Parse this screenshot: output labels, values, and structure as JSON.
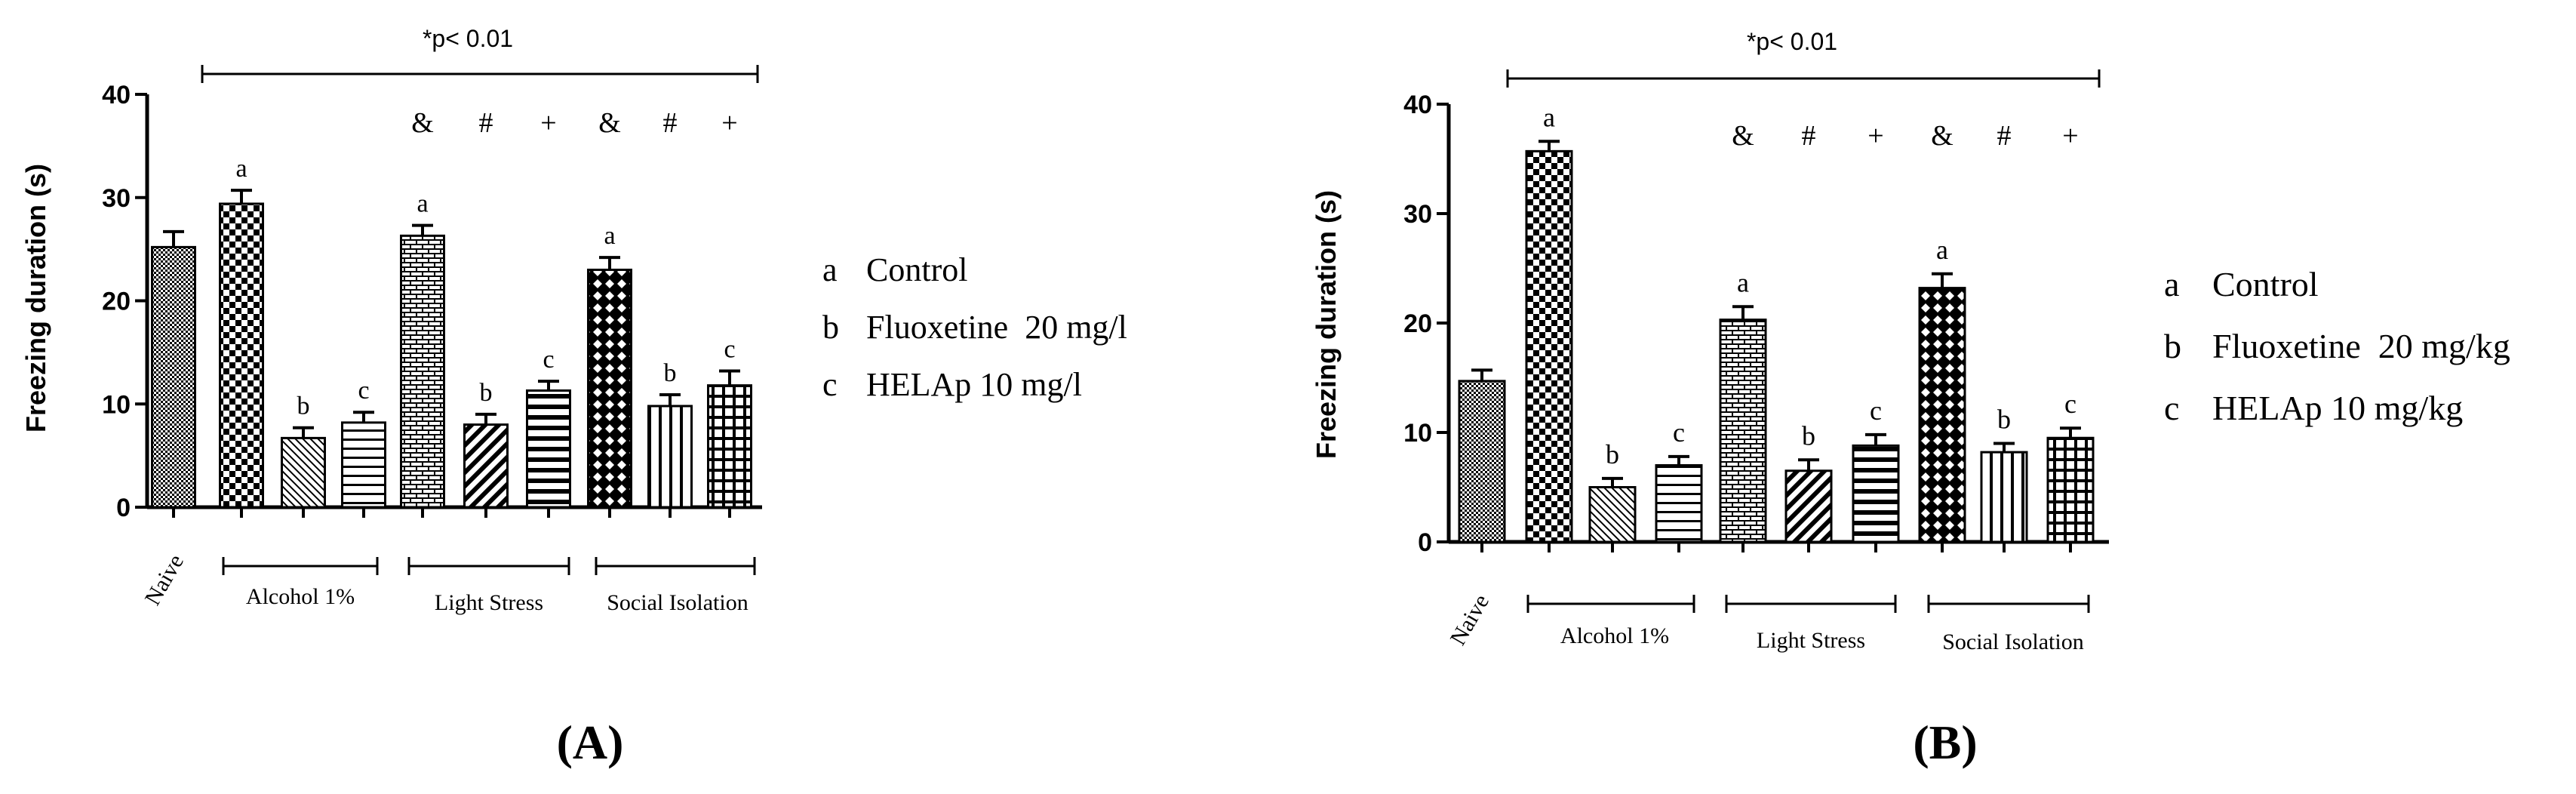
{
  "charts": [
    {
      "panel_label": "(A)",
      "significance_note": "*p< 0.01",
      "legend": [
        {
          "letter": "a",
          "text": "Control"
        },
        {
          "letter": "b",
          "text": "Fluoxetine  20 mg/l"
        },
        {
          "letter": "c",
          "text": "HELAp 10 mg/l"
        }
      ],
      "group_labels": {
        "naive": "Naive",
        "alcohol": "Alcohol 1%",
        "light": "Light Stress",
        "social": "Social Isolation"
      }
    },
    {
      "panel_label": "(B)",
      "significance_note": "*p< 0.01",
      "legend": [
        {
          "letter": "a",
          "text": "Control"
        },
        {
          "letter": "b",
          "text": "Fluoxetine  20 mg/kg"
        },
        {
          "letter": "c",
          "text": "HELAp 10 mg/kg"
        }
      ],
      "group_labels": {
        "naive": "Naive",
        "alcohol": "Alcohol 1%",
        "light": "Light Stress",
        "social": "Social Isolation"
      }
    }
  ],
  "chart_data": [
    {
      "type": "bar",
      "title": "",
      "ylabel": "Freezing duration (s)",
      "xlabel": "",
      "ylim": [
        0,
        40
      ],
      "yticks": [
        0,
        10,
        20,
        30,
        40
      ],
      "groups": [
        "Naive",
        "Alcohol 1%",
        "Light Stress",
        "Social Isolation"
      ],
      "bars": [
        {
          "group": "Naive",
          "treatment": "",
          "value": 25.2,
          "error": 1.5,
          "label": "",
          "marker": "",
          "pattern": "dots"
        },
        {
          "group": "Alcohol 1%",
          "treatment": "Control",
          "value": 29.4,
          "error": 1.3,
          "label": "a",
          "marker": "",
          "pattern": "checker"
        },
        {
          "group": "Alcohol 1%",
          "treatment": "Fluoxetine",
          "value": 6.7,
          "error": 1.0,
          "label": "b",
          "marker": "",
          "pattern": "diag-down"
        },
        {
          "group": "Alcohol 1%",
          "treatment": "HELAp",
          "value": 8.2,
          "error": 1.0,
          "label": "c",
          "marker": "",
          "pattern": "hlines"
        },
        {
          "group": "Light Stress",
          "treatment": "Control",
          "value": 26.3,
          "error": 1.0,
          "label": "a",
          "marker": "&",
          "pattern": "brick"
        },
        {
          "group": "Light Stress",
          "treatment": "Fluoxetine",
          "value": 8.0,
          "error": 1.0,
          "label": "b",
          "marker": "#",
          "pattern": "diag-up"
        },
        {
          "group": "Light Stress",
          "treatment": "HELAp",
          "value": 11.3,
          "error": 0.9,
          "label": "c",
          "marker": "+",
          "pattern": "hlines-thick"
        },
        {
          "group": "Social Isolation",
          "treatment": "Control",
          "value": 23.0,
          "error": 1.2,
          "label": "a",
          "marker": "&",
          "pattern": "crosshatch"
        },
        {
          "group": "Social Isolation",
          "treatment": "Fluoxetine",
          "value": 9.8,
          "error": 1.1,
          "label": "b",
          "marker": "#",
          "pattern": "vlines"
        },
        {
          "group": "Social Isolation",
          "treatment": "HELAp",
          "value": 11.8,
          "error": 1.4,
          "label": "c",
          "marker": "+",
          "pattern": "grid"
        }
      ]
    },
    {
      "type": "bar",
      "title": "",
      "ylabel": "Freezing duration (s)",
      "xlabel": "",
      "ylim": [
        0,
        40
      ],
      "yticks": [
        0,
        10,
        20,
        30,
        40
      ],
      "groups": [
        "Naive",
        "Alcohol 1%",
        "Light Stress",
        "Social Isolation"
      ],
      "bars": [
        {
          "group": "Naive",
          "treatment": "",
          "value": 14.7,
          "error": 1.0,
          "label": "",
          "marker": "",
          "pattern": "dots"
        },
        {
          "group": "Alcohol 1%",
          "treatment": "Control",
          "value": 35.7,
          "error": 0.9,
          "label": "a",
          "marker": "",
          "pattern": "checker"
        },
        {
          "group": "Alcohol 1%",
          "treatment": "Fluoxetine",
          "value": 5.0,
          "error": 0.8,
          "label": "b",
          "marker": "",
          "pattern": "diag-down"
        },
        {
          "group": "Alcohol 1%",
          "treatment": "HELAp",
          "value": 7.0,
          "error": 0.8,
          "label": "c",
          "marker": "",
          "pattern": "hlines"
        },
        {
          "group": "Light Stress",
          "treatment": "Control",
          "value": 20.3,
          "error": 1.2,
          "label": "a",
          "marker": "&",
          "pattern": "brick"
        },
        {
          "group": "Light Stress",
          "treatment": "Fluoxetine",
          "value": 6.5,
          "error": 1.0,
          "label": "b",
          "marker": "#",
          "pattern": "diag-up"
        },
        {
          "group": "Light Stress",
          "treatment": "HELAp",
          "value": 8.8,
          "error": 1.0,
          "label": "c",
          "marker": "+",
          "pattern": "hlines-thick"
        },
        {
          "group": "Social Isolation",
          "treatment": "Control",
          "value": 23.2,
          "error": 1.3,
          "label": "a",
          "marker": "&",
          "pattern": "crosshatch"
        },
        {
          "group": "Social Isolation",
          "treatment": "Fluoxetine",
          "value": 8.2,
          "error": 0.8,
          "label": "b",
          "marker": "#",
          "pattern": "vlines"
        },
        {
          "group": "Social Isolation",
          "treatment": "HELAp",
          "value": 9.5,
          "error": 0.9,
          "label": "c",
          "marker": "+",
          "pattern": "grid"
        }
      ]
    }
  ]
}
